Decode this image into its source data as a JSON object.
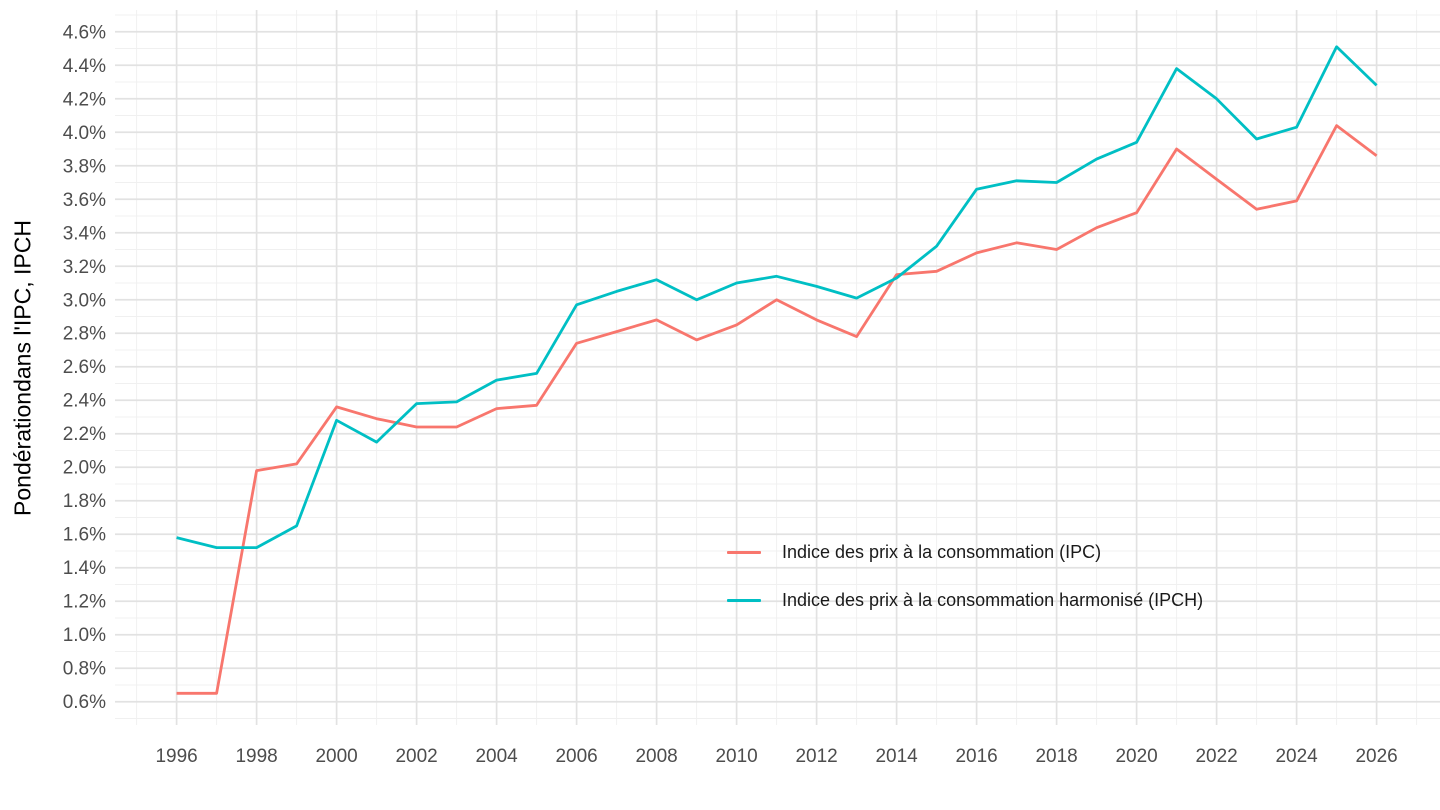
{
  "chart_data": {
    "type": "line",
    "title": "",
    "xlabel": "",
    "ylabel": "Pondérationdans l'IPC, IPCH",
    "x": [
      1996,
      1997,
      1998,
      1999,
      2000,
      2001,
      2002,
      2003,
      2004,
      2005,
      2006,
      2007,
      2008,
      2009,
      2010,
      2011,
      2012,
      2013,
      2014,
      2015,
      2016,
      2017,
      2018,
      2019,
      2020,
      2021,
      2022,
      2023,
      2024,
      2025,
      2026
    ],
    "series": [
      {
        "name": "Indice des prix à la consommation (IPC)",
        "color": "#F8766D",
        "values": [
          0.65,
          0.65,
          1.98,
          2.02,
          2.36,
          2.29,
          2.24,
          2.24,
          2.35,
          2.37,
          2.74,
          2.81,
          2.88,
          2.76,
          2.85,
          3.0,
          2.88,
          2.78,
          3.15,
          3.17,
          3.28,
          3.34,
          3.3,
          3.43,
          3.52,
          3.9,
          3.72,
          3.54,
          3.59,
          4.04,
          3.86
        ]
      },
      {
        "name": "Indice des prix à la consommation harmonisé (IPCH)",
        "color": "#00BFC4",
        "values": [
          1.58,
          1.52,
          1.52,
          1.65,
          2.28,
          2.15,
          2.38,
          2.39,
          2.52,
          2.56,
          2.97,
          3.05,
          3.12,
          3.0,
          3.1,
          3.14,
          3.08,
          3.01,
          3.13,
          3.32,
          3.66,
          3.71,
          3.7,
          3.84,
          3.94,
          4.38,
          4.2,
          3.96,
          4.03,
          4.51,
          4.28
        ]
      }
    ],
    "x_ticks": [
      1996,
      1998,
      2000,
      2002,
      2004,
      2006,
      2008,
      2010,
      2012,
      2014,
      2016,
      2018,
      2020,
      2022,
      2024,
      2026
    ],
    "x_tick_labels": [
      "1996",
      "1998",
      "2000",
      "2002",
      "2004",
      "2006",
      "2008",
      "2010",
      "2012",
      "2014",
      "2016",
      "2018",
      "2020",
      "2022",
      "2024",
      "2026"
    ],
    "y_ticks": [
      0.6,
      0.8,
      1.0,
      1.2,
      1.4,
      1.6,
      1.8,
      2.0,
      2.2,
      2.4,
      2.6,
      2.8,
      3.0,
      3.2,
      3.4,
      3.6,
      3.8,
      4.0,
      4.2,
      4.4,
      4.6
    ],
    "y_tick_labels": [
      "0.6%",
      "0.8%",
      "1.0%",
      "1.2%",
      "1.4%",
      "1.6%",
      "1.8%",
      "2.0%",
      "2.2%",
      "2.4%",
      "2.6%",
      "2.8%",
      "3.0%",
      "3.2%",
      "3.4%",
      "3.6%",
      "3.8%",
      "4.0%",
      "4.2%",
      "4.4%",
      "4.6%"
    ],
    "xlim": [
      1994.46,
      2027.61
    ],
    "ylim": [
      0.461,
      4.73
    ],
    "grid": {
      "major_color": "#e2e2e2",
      "minor_color": "#f0f0f0",
      "minor_on": true
    },
    "legend_position": "inside-right-middle",
    "colors": {
      "background": "#ffffff",
      "tick_text": "#4d4d4d",
      "title_text": "#000000"
    }
  }
}
